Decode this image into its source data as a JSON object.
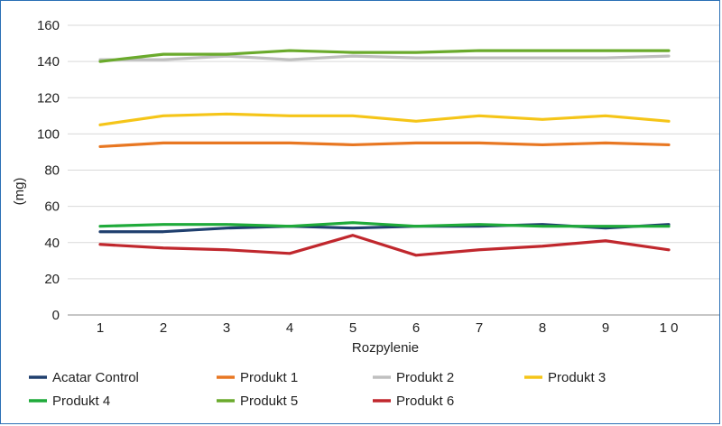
{
  "chart_data": {
    "type": "line",
    "title": "",
    "xlabel": "Rozpylenie",
    "ylabel": "(mg)",
    "categories": [
      "1",
      "2",
      "3",
      "4",
      "5",
      "6",
      "7",
      "8",
      "9",
      "1 0"
    ],
    "ylim": [
      0,
      160
    ],
    "yticks": [
      0,
      20,
      40,
      60,
      80,
      100,
      120,
      140,
      160
    ],
    "grid": true,
    "legend": "bottom",
    "series": [
      {
        "name": "Acatar Control",
        "color": "#1f3f6e",
        "values": [
          46,
          46,
          48,
          49,
          48,
          49,
          49,
          50,
          48,
          50
        ]
      },
      {
        "name": "Produkt 1",
        "color": "#e87722",
        "values": [
          93,
          95,
          95,
          95,
          94,
          95,
          95,
          94,
          95,
          94
        ]
      },
      {
        "name": "Produkt 2",
        "color": "#bfbfbf",
        "values": [
          141,
          141,
          143,
          141,
          143,
          142,
          142,
          142,
          142,
          143
        ]
      },
      {
        "name": "Produkt 3",
        "color": "#f5c518",
        "values": [
          105,
          110,
          111,
          110,
          110,
          107,
          110,
          108,
          110,
          107
        ]
      },
      {
        "name": "Produkt 4",
        "color": "#1faa3a",
        "values": [
          49,
          50,
          50,
          49,
          51,
          49,
          50,
          49,
          49,
          49
        ]
      },
      {
        "name": "Produkt 5",
        "color": "#6aaa2c",
        "values": [
          140,
          144,
          144,
          146,
          145,
          145,
          146,
          146,
          146,
          146
        ]
      },
      {
        "name": "Produkt 6",
        "color": "#c0272d",
        "values": [
          39,
          37,
          36,
          34,
          44,
          33,
          36,
          38,
          41,
          36
        ]
      }
    ]
  }
}
